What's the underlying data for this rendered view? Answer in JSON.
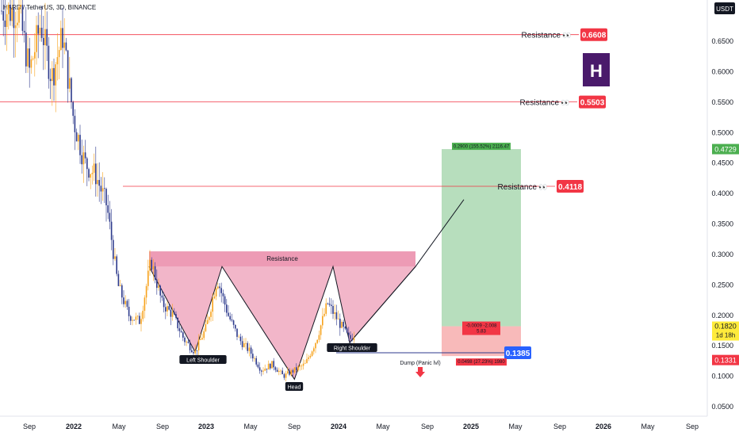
{
  "header": {
    "symbol": "HARD / TetherUS, 3D, BINANCE",
    "currency": "USDT"
  },
  "logo": {
    "letter": "H",
    "color": "#4a1a6b"
  },
  "colors": {
    "resistance_line": "#f23645",
    "price_badge": "#f23645",
    "pattern_fill": "#e77a9c",
    "target_zone": "#9fd3a7",
    "stop_zone": "#f5a3a3",
    "candle_up": "#f7a21b",
    "candle_down": "#2d3a8c",
    "entry_badge": "#2962ff",
    "current_badge": "#4caf50",
    "bid_badge": "#ffeb3b"
  },
  "chart_data": {
    "type": "candlestick",
    "x_ticks": [
      "Sep",
      "2022",
      "May",
      "Sep",
      "2023",
      "May",
      "Sep",
      "2024",
      "May",
      "Sep",
      "2025",
      "May",
      "Sep",
      "2026",
      "May",
      "Sep"
    ],
    "y_ticks": [
      "0.6500",
      "0.6000",
      "0.5500",
      "0.5000",
      "0.4500",
      "0.4000",
      "0.3500",
      "0.3000",
      "0.2500",
      "0.2000",
      "0.1500",
      "0.1000",
      "0.0500"
    ],
    "ylim": [
      0.04,
      0.71
    ],
    "price_path": [
      [
        "2021-08",
        0.7
      ],
      [
        "2021-09",
        0.6
      ],
      [
        "2021-10",
        0.68
      ],
      [
        "2021-11",
        0.59
      ],
      [
        "2021-12",
        0.66
      ],
      [
        "2022-01",
        0.52
      ],
      [
        "2022-02",
        0.45
      ],
      [
        "2022-03",
        0.43
      ],
      [
        "2022-04",
        0.38
      ],
      [
        "2022-05",
        0.25
      ],
      [
        "2022-06",
        0.2
      ],
      [
        "2022-07",
        0.19
      ],
      [
        "2022-08",
        0.29
      ],
      [
        "2022-09",
        0.22
      ],
      [
        "2022-10",
        0.2
      ],
      [
        "2022-11",
        0.16
      ],
      [
        "2022-12",
        0.14
      ],
      [
        "2023-01",
        0.18
      ],
      [
        "2023-02",
        0.26
      ],
      [
        "2023-03",
        0.2
      ],
      [
        "2023-04",
        0.16
      ],
      [
        "2023-05",
        0.14
      ],
      [
        "2023-06",
        0.11
      ],
      [
        "2023-07",
        0.12
      ],
      [
        "2023-08",
        0.1
      ],
      [
        "2023-09",
        0.11
      ],
      [
        "2023-10",
        0.12
      ],
      [
        "2023-11",
        0.16
      ],
      [
        "2023-12",
        0.22
      ],
      [
        "2024-01",
        0.19
      ],
      [
        "2024-02",
        0.16
      ],
      [
        "2024-03",
        0.182
      ]
    ],
    "horizontal_levels": [
      {
        "label": "Resistance",
        "value": 0.6608,
        "badge": "0.6608"
      },
      {
        "label": "Resistance",
        "value": 0.5503,
        "badge": "0.5503"
      },
      {
        "label": "Resistance",
        "value": 0.4118,
        "badge": "0.4118"
      }
    ],
    "pattern": {
      "name": "Inverse Head and Shoulders",
      "neckline_label": "Resistance",
      "neckline_value": 0.3,
      "left_shoulder": {
        "label": "Left Shoulder",
        "date": "2022-12",
        "value": 0.14
      },
      "head": {
        "label": "Head",
        "date": "2023-09",
        "value": 0.095
      },
      "right_shoulder": {
        "label": "Right Shoulder",
        "date": "2024-02",
        "value": 0.155
      }
    },
    "position": {
      "entry": 0.1385,
      "entry_badge": "0.1385",
      "target": 0.4729,
      "stop": 0.1331,
      "target_label": "0.2900 (155.52%) 2116.47",
      "mid_label_1": "-0.0009 -2.008",
      "mid_label_2": "5.83",
      "stop_label": "0.0498 (27.23%) 1980"
    },
    "dump_label": "Dump (Panic lvl)",
    "badges_right": {
      "current": "0.4729",
      "price": "0.1820",
      "countdown": "1d 18h",
      "low": "0.1331"
    }
  }
}
